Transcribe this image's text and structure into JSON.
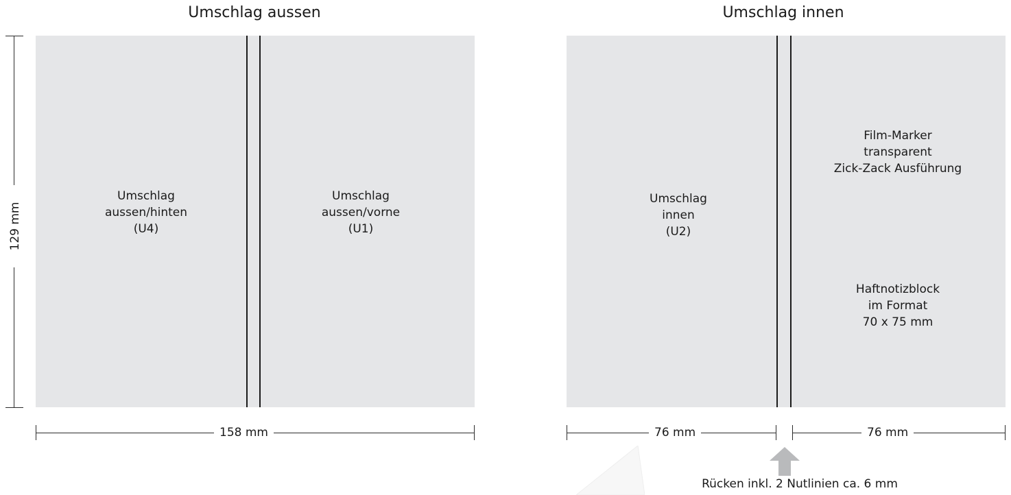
{
  "outer": {
    "title": "Umschlag aussen",
    "back_label": [
      "Umschlag",
      "aussen/hinten",
      "(U4)"
    ],
    "front_label": [
      "Umschlag",
      "aussen/vorne",
      "(U1)"
    ],
    "width_dim": "158 mm",
    "height_dim": "129 mm"
  },
  "inner": {
    "title": "Umschlag innen",
    "left_label": [
      "Umschlag",
      "innen",
      "(U2)"
    ],
    "right_label_top": [
      "Film-Marker",
      "transparent",
      "Zick-Zack Ausführung"
    ],
    "right_label_bottom": [
      "Haftnotizblock",
      "im Format",
      "70 x 75 mm"
    ],
    "left_dim": "76 mm",
    "right_dim": "76 mm",
    "spine_note": "Rücken inkl. 2 Nutlinien ca. 6 mm"
  },
  "colors": {
    "panel": "#e5e6e8",
    "line": "#1a1a1a",
    "arrow": "#b9babc"
  }
}
